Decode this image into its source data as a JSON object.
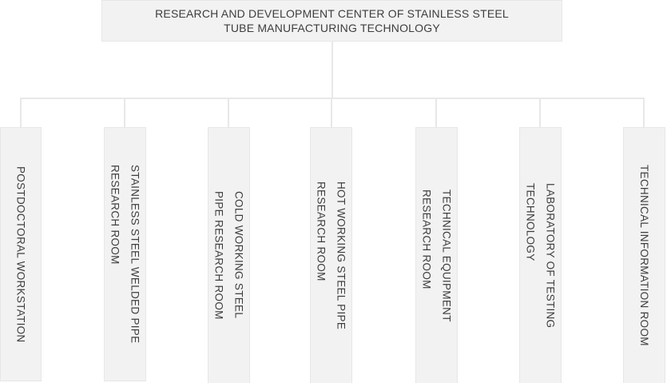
{
  "org_chart": {
    "root": {
      "title_lines": [
        "RESEARCH AND DEVELOPMENT CENTER OF STAINLESS STEEL",
        "TUBE MANUFACTURING TECHNOLOGY"
      ]
    },
    "departments": [
      {
        "id": "postdoctoral-workstation",
        "lines": [
          "POSTDOCTORAL WORKSTATION"
        ]
      },
      {
        "id": "stainless-steel-welded-pipe-room",
        "lines": [
          "STAINLESS STEEL WELDED PIPE",
          "RESEARCH ROOM"
        ]
      },
      {
        "id": "cold-working-steel-pipe-room",
        "lines": [
          "COLD WORKING STEEL",
          "PIPE RESEARCH ROOM"
        ]
      },
      {
        "id": "hot-working-steel-pipe-room",
        "lines": [
          "HOT WORKING STEEL PIPE",
          "RESEARCH ROOM"
        ]
      },
      {
        "id": "technical-equipment-room",
        "lines": [
          "TECHNICAL EQUIPMENT",
          "RESEARCH ROOM"
        ]
      },
      {
        "id": "laboratory-of-testing-technology",
        "lines": [
          "LABORATORY OF TESTING",
          "TECHNOLOGY"
        ]
      },
      {
        "id": "technical-information-room",
        "lines": [
          "TECHNICAL INFORMATION ROOM"
        ]
      }
    ],
    "colors": {
      "background": "#ffffff",
      "box_fill": "#f2f2f2",
      "box_border": "#e7e7e7",
      "connector": "#e8e8e8",
      "text": "#3d3d3d"
    }
  }
}
